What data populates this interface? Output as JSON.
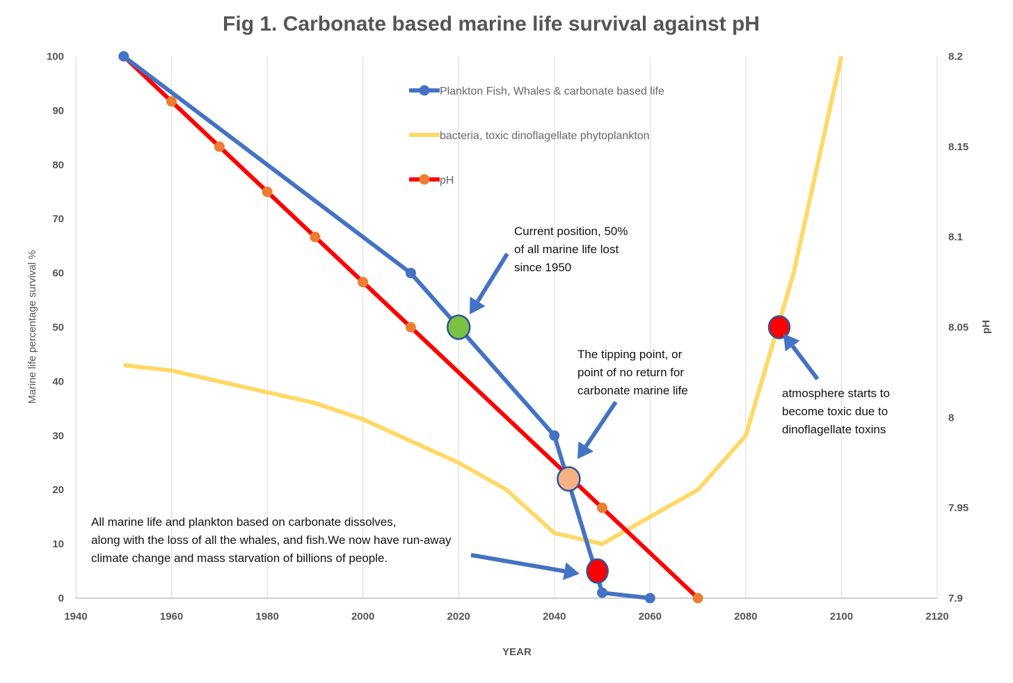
{
  "chart_data": {
    "type": "line",
    "title": "Fig 1. Carbonate based marine life survival against pH",
    "xlabel": "YEAR",
    "ylabel": "Marine life  percentage survival   %",
    "y2label": "pH",
    "xlim": [
      1940,
      2120
    ],
    "ylim": [
      0,
      100
    ],
    "y2lim": [
      7.9,
      8.2
    ],
    "x_ticks": [
      "1940",
      "1960",
      "1980",
      "2000",
      "2020",
      "2040",
      "2060",
      "2080",
      "2100",
      "2120"
    ],
    "y_ticks": [
      "0",
      "10",
      "20",
      "30",
      "40",
      "50",
      "60",
      "70",
      "80",
      "90",
      "100"
    ],
    "y2_ticks": [
      "7.9",
      "7.95",
      "8",
      "8.05",
      "8.1",
      "8.15",
      "8.2"
    ],
    "grid": "vertical",
    "legend_position": "top-center",
    "series": [
      {
        "name": "Plankton Fish, Whales & carbonate based life",
        "axis": "left",
        "color": "#4472C4",
        "markers": true,
        "x": [
          1950,
          2010,
          2020,
          2040,
          2050,
          2060
        ],
        "y": [
          100,
          60,
          50,
          30,
          1,
          0
        ]
      },
      {
        "name": "bacteria, toxic dinoflagellate phytoplankton",
        "axis": "left",
        "color": "#FFD966",
        "markers": false,
        "x": [
          1950,
          1960,
          1970,
          1980,
          1990,
          2000,
          2010,
          2020,
          2030,
          2040,
          2050,
          2060,
          2070,
          2080,
          2090,
          2100
        ],
        "y": [
          43,
          42,
          40,
          38,
          36,
          33,
          29,
          25,
          20,
          12,
          10,
          15,
          20,
          30,
          60,
          100
        ]
      },
      {
        "name": "pH",
        "axis": "right",
        "color": "#FF0000",
        "marker_color": "#ED7D31",
        "markers": true,
        "x": [
          1950,
          1960,
          1970,
          1980,
          1990,
          2000,
          2010,
          2050,
          2070
        ],
        "y": [
          8.2,
          8.175,
          8.15,
          8.125,
          8.1,
          8.075,
          8.05,
          7.95,
          7.9
        ],
        "line_x": [
          1950,
          2070
        ],
        "line_y": [
          8.2,
          7.9
        ]
      }
    ],
    "highlight_points": [
      {
        "name": "current-position-point",
        "x": 2020,
        "y": 50,
        "color": "#7AC142"
      },
      {
        "name": "tipping-point",
        "x": 2043,
        "y": 22,
        "color": "#F4B183"
      },
      {
        "name": "run-away-point",
        "x": 2049,
        "y": 5,
        "color": "#FF0000"
      },
      {
        "name": "toxic-atmosphere-point",
        "x": 2087,
        "y": 50,
        "color": "#FF0000"
      }
    ],
    "annotations": [
      {
        "name": "annotation-current-position",
        "lines": [
          "Current position, 50%",
          "of all marine life lost",
          "since 1950"
        ]
      },
      {
        "name": "annotation-tipping-point",
        "lines": [
          "The tipping point, or",
          "point of no return for",
          "carbonate marine life"
        ]
      },
      {
        "name": "annotation-toxic-atmosphere",
        "lines": [
          "atmosphere starts to",
          "become toxic due to",
          "dinoflagellate toxins"
        ]
      },
      {
        "name": "annotation-run-away",
        "lines": [
          "All marine life and plankton based on carbonate dissolves,",
          "along with the loss of all the whales, and fish.We now have run-away",
          "climate change and mass starvation of billions of people."
        ]
      }
    ],
    "arrow_color": "#4472C4"
  }
}
